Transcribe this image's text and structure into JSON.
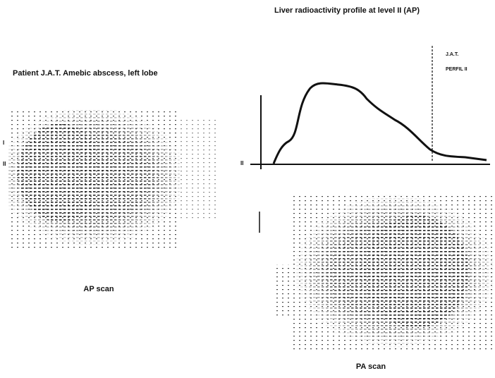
{
  "header": {
    "title": "Liver radioactivity profile at level II (AP)"
  },
  "patient_label": "Patient J.A.T. Amebic abscess, left lobe",
  "profile": {
    "tags": [
      "J.A.T.",
      "PERFIL II"
    ],
    "baseline_mark": "II"
  },
  "ap_scan": {
    "label": "AP scan",
    "level_marks": [
      "I",
      "II"
    ]
  },
  "pa_scan": {
    "label": "PA scan"
  }
}
